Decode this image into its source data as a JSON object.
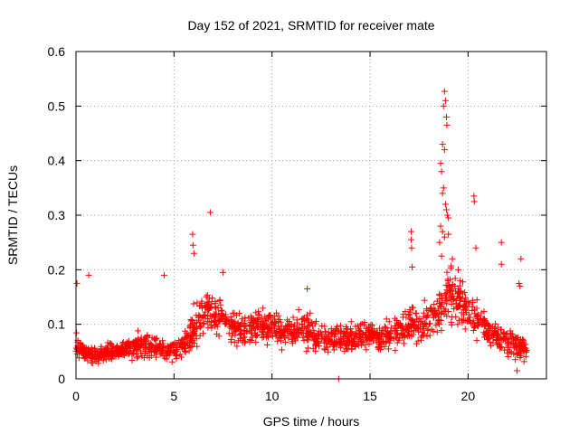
{
  "chart_data": {
    "type": "scatter",
    "title": "Day 152 of 2021, SRMTID for receiver mate",
    "xlabel": "GPS time / hours",
    "ylabel": "SRMTID / TECUs",
    "xlim": [
      0,
      24
    ],
    "ylim": [
      0,
      0.6
    ],
    "xticks": [
      0,
      5,
      10,
      15,
      20
    ],
    "xtick_labels": [
      "0",
      "5",
      "10",
      "15",
      "20"
    ],
    "yticks": [
      0,
      0.1,
      0.2,
      0.3,
      0.4,
      0.5,
      0.6
    ],
    "ytick_labels": [
      "0",
      "0.1",
      "0.2",
      "0.3",
      "0.4",
      "0.5",
      "0.6"
    ],
    "grid": true,
    "marker": "+",
    "color": "#ff0000",
    "profile": {
      "x": [
        0,
        0.5,
        1,
        1.5,
        2,
        2.5,
        3,
        3.5,
        4,
        4.5,
        5,
        5.5,
        6,
        6.5,
        7,
        7.5,
        8,
        8.5,
        9,
        9.5,
        10,
        10.5,
        11,
        11.5,
        12,
        12.5,
        13,
        13.5,
        14,
        14.5,
        15,
        15.5,
        16,
        16.5,
        17,
        17.5,
        18,
        18.5,
        19,
        19.5,
        20,
        20.5,
        21,
        21.5,
        22,
        22.5,
        23
      ],
      "center": [
        0.06,
        0.045,
        0.045,
        0.045,
        0.05,
        0.055,
        0.06,
        0.06,
        0.06,
        0.055,
        0.055,
        0.06,
        0.09,
        0.12,
        0.12,
        0.11,
        0.1,
        0.09,
        0.095,
        0.1,
        0.09,
        0.085,
        0.09,
        0.095,
        0.085,
        0.075,
        0.075,
        0.075,
        0.075,
        0.08,
        0.08,
        0.07,
        0.08,
        0.09,
        0.1,
        0.095,
        0.11,
        0.13,
        0.16,
        0.14,
        0.12,
        0.11,
        0.09,
        0.075,
        0.07,
        0.06,
        0.055
      ],
      "spread": [
        0.025,
        0.02,
        0.02,
        0.02,
        0.02,
        0.022,
        0.025,
        0.025,
        0.025,
        0.025,
        0.025,
        0.03,
        0.05,
        0.04,
        0.04,
        0.035,
        0.035,
        0.035,
        0.035,
        0.035,
        0.035,
        0.035,
        0.035,
        0.035,
        0.035,
        0.03,
        0.03,
        0.03,
        0.03,
        0.03,
        0.03,
        0.03,
        0.035,
        0.035,
        0.04,
        0.04,
        0.045,
        0.06,
        0.07,
        0.05,
        0.045,
        0.04,
        0.035,
        0.03,
        0.03,
        0.03,
        0.025
      ]
    },
    "highlights": [
      {
        "x": 0.05,
        "y": 0.175
      },
      {
        "x": 0.65,
        "y": 0.19
      },
      {
        "x": 4.5,
        "y": 0.19
      },
      {
        "x": 5.95,
        "y": 0.265
      },
      {
        "x": 5.97,
        "y": 0.245
      },
      {
        "x": 6.02,
        "y": 0.23
      },
      {
        "x": 6.85,
        "y": 0.305
      },
      {
        "x": 7.5,
        "y": 0.195
      },
      {
        "x": 11.8,
        "y": 0.165
      },
      {
        "x": 17.1,
        "y": 0.27
      },
      {
        "x": 17.1,
        "y": 0.255
      },
      {
        "x": 17.12,
        "y": 0.24
      },
      {
        "x": 17.15,
        "y": 0.205
      },
      {
        "x": 18.7,
        "y": 0.43
      },
      {
        "x": 18.75,
        "y": 0.5
      },
      {
        "x": 18.8,
        "y": 0.527
      },
      {
        "x": 18.85,
        "y": 0.51
      },
      {
        "x": 18.9,
        "y": 0.48
      },
      {
        "x": 18.92,
        "y": 0.465
      },
      {
        "x": 18.6,
        "y": 0.395
      },
      {
        "x": 18.65,
        "y": 0.38
      },
      {
        "x": 18.8,
        "y": 0.42
      },
      {
        "x": 18.7,
        "y": 0.34
      },
      {
        "x": 18.75,
        "y": 0.35
      },
      {
        "x": 18.85,
        "y": 0.32
      },
      {
        "x": 18.9,
        "y": 0.31
      },
      {
        "x": 18.95,
        "y": 0.3
      },
      {
        "x": 19.0,
        "y": 0.295
      },
      {
        "x": 18.6,
        "y": 0.28
      },
      {
        "x": 18.7,
        "y": 0.27
      },
      {
        "x": 18.55,
        "y": 0.25
      },
      {
        "x": 18.8,
        "y": 0.26
      },
      {
        "x": 18.65,
        "y": 0.225
      },
      {
        "x": 19.0,
        "y": 0.265
      },
      {
        "x": 19.2,
        "y": 0.22
      },
      {
        "x": 19.5,
        "y": 0.2
      },
      {
        "x": 19.6,
        "y": 0.18
      },
      {
        "x": 20.3,
        "y": 0.335
      },
      {
        "x": 20.32,
        "y": 0.325
      },
      {
        "x": 20.4,
        "y": 0.24
      },
      {
        "x": 21.7,
        "y": 0.25
      },
      {
        "x": 21.7,
        "y": 0.21
      },
      {
        "x": 22.7,
        "y": 0.22
      },
      {
        "x": 22.6,
        "y": 0.175
      },
      {
        "x": 22.65,
        "y": 0.17
      },
      {
        "x": 22.5,
        "y": 0.015
      },
      {
        "x": 13.4,
        "y": 0.0
      }
    ]
  }
}
